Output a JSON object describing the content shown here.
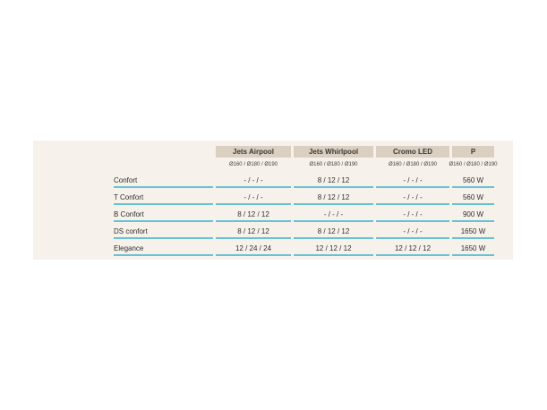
{
  "colors": {
    "page_background": "#ffffff",
    "panel_background": "#f6f2eb",
    "header_band": "#d9d0c2",
    "row_rule": "#67c2d6",
    "text": "#2f2e2c"
  },
  "table": {
    "columns": [
      {
        "label": "Jets Airpool",
        "diameters": "Ø160 / Ø180 / Ø190"
      },
      {
        "label": "Jets Whirlpool",
        "diameters": "Ø160 / Ø180 / Ø190"
      },
      {
        "label": "Cromo LED",
        "diameters": "Ø160 / Ø180 / Ø190"
      },
      {
        "label": "P",
        "diameters": "Ø160 / Ø180 / Ø190"
      }
    ],
    "rows": [
      {
        "label": "Confort",
        "values": [
          "- / - / -",
          "8 / 12 / 12",
          "- / - / -",
          "560 W"
        ]
      },
      {
        "label": "T Confort",
        "values": [
          "- / - / -",
          "8 / 12 / 12",
          "- / - / -",
          "560 W"
        ]
      },
      {
        "label": "B Confort",
        "values": [
          "8 / 12 / 12",
          "- / - / -",
          "- / - / -",
          "900 W"
        ]
      },
      {
        "label": "DS confort",
        "values": [
          "8 / 12 / 12",
          "8 / 12 / 12",
          "- / - / -",
          "1650 W"
        ]
      },
      {
        "label": "Elegance",
        "values": [
          "12 / 24 / 24",
          "12 / 12 / 12",
          "12 / 12 / 12",
          "1650 W"
        ]
      }
    ]
  }
}
